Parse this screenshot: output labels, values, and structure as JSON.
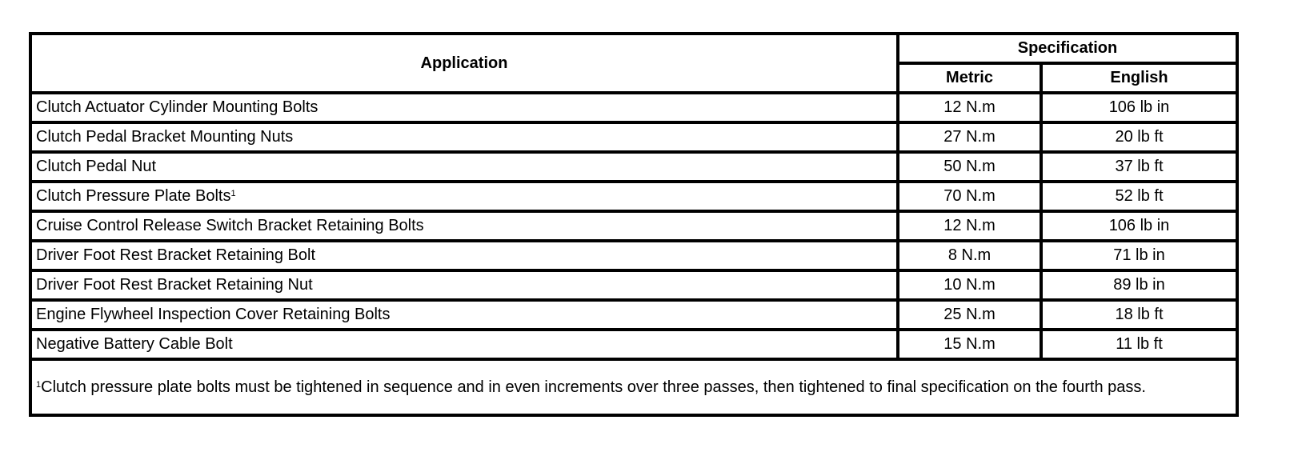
{
  "headers": {
    "application": "Application",
    "specification": "Specification",
    "metric": "Metric",
    "english": "English"
  },
  "rows": [
    {
      "application": "Clutch Actuator Cylinder Mounting Bolts",
      "note_mark": "",
      "metric": "12 N.m",
      "english": "106 lb in"
    },
    {
      "application": "Clutch Pedal Bracket Mounting Nuts",
      "note_mark": "",
      "metric": "27 N.m",
      "english": "20 lb ft"
    },
    {
      "application": "Clutch Pedal Nut",
      "note_mark": "",
      "metric": "50 N.m",
      "english": "37 lb ft"
    },
    {
      "application": "Clutch Pressure Plate Bolts",
      "note_mark": "1",
      "metric": "70 N.m",
      "english": "52 lb ft"
    },
    {
      "application": "Cruise Control Release Switch Bracket Retaining Bolts",
      "note_mark": "",
      "metric": "12 N.m",
      "english": "106 lb in"
    },
    {
      "application": "Driver Foot Rest Bracket Retaining Bolt",
      "note_mark": "",
      "metric": "8 N.m",
      "english": "71 lb in"
    },
    {
      "application": "Driver Foot Rest Bracket Retaining Nut",
      "note_mark": "",
      "metric": "10 N.m",
      "english": "89 lb in"
    },
    {
      "application": "Engine Flywheel Inspection Cover Retaining Bolts",
      "note_mark": "",
      "metric": "25 N.m",
      "english": "18 lb ft"
    },
    {
      "application": "Negative Battery Cable Bolt",
      "note_mark": "",
      "metric": "15 N.m",
      "english": "11 lb ft"
    }
  ],
  "footnote": {
    "mark": "1",
    "text": "Clutch pressure plate bolts must be tightened in sequence and in even increments over three passes, then tightened to final specification on the fourth pass."
  }
}
